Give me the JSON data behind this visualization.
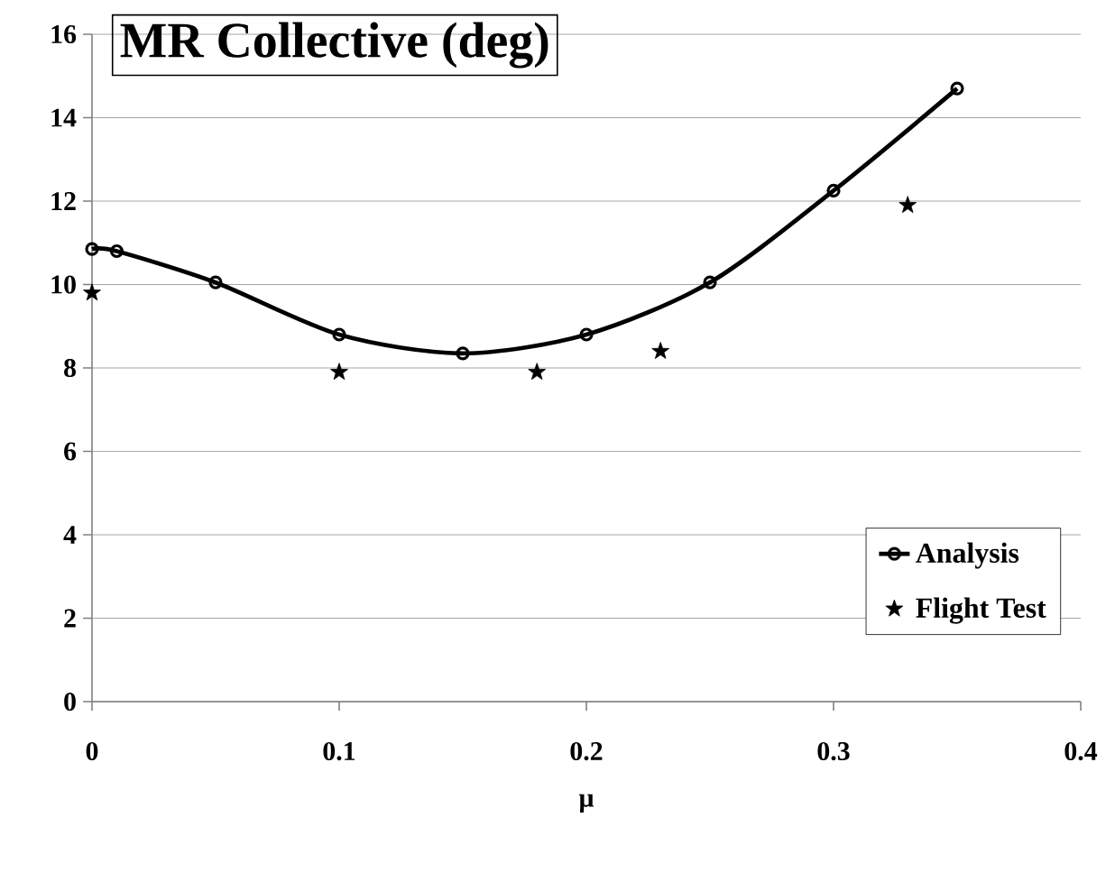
{
  "chart_data": {
    "type": "line",
    "title": "MR Collective (deg)",
    "xlabel": "μ",
    "series": [
      {
        "name": "Analysis",
        "color": "#000000",
        "marker": "circle",
        "line_style": "solid",
        "x": [
          0,
          0.01,
          0.05,
          0.1,
          0.15,
          0.2,
          0.25,
          0.3,
          0.35
        ],
        "values": [
          10.85,
          10.8,
          10.05,
          8.8,
          8.35,
          8.8,
          10.05,
          12.25,
          14.7
        ]
      },
      {
        "name": "Flight Test",
        "type": "scatter",
        "color": "#000000",
        "marker": "star",
        "x": [
          0,
          0.1,
          0.18,
          0.23,
          0.33
        ],
        "values": [
          9.8,
          7.9,
          7.9,
          8.4,
          11.9
        ]
      }
    ],
    "xlim": [
      0,
      0.4
    ],
    "xticks": [
      0,
      0.1,
      0.2,
      0.3,
      0.4
    ],
    "ylim": [
      0,
      16
    ],
    "yticks": [
      0,
      2,
      4,
      6,
      8,
      10,
      12,
      14,
      16
    ],
    "grid": "y",
    "legend": "bottom right"
  }
}
